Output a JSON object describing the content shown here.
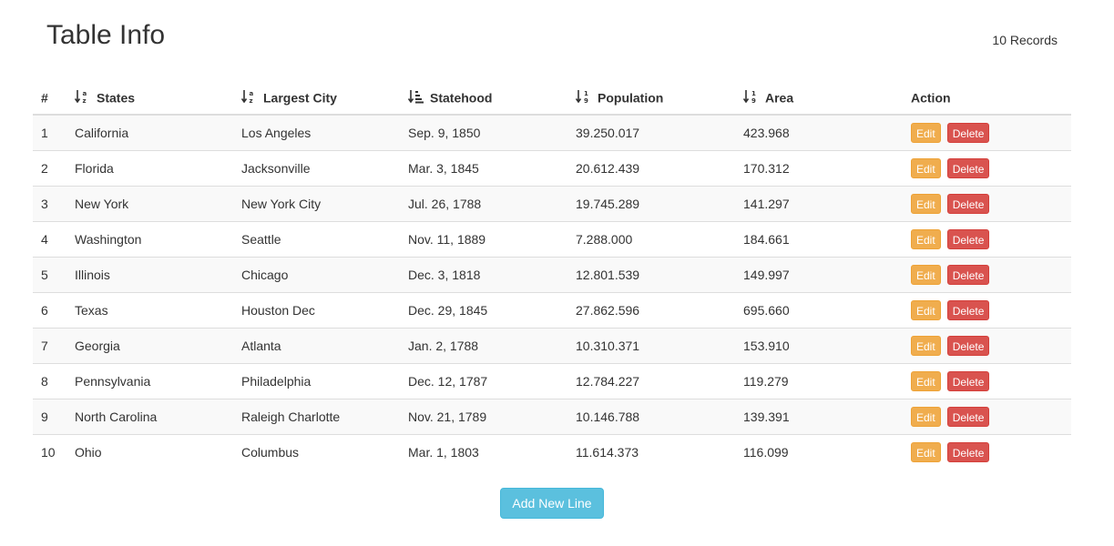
{
  "header": {
    "title": "Table Info",
    "record_count": "10 Records"
  },
  "table": {
    "columns": [
      {
        "label": "#",
        "sort_icon": null
      },
      {
        "label": "States",
        "sort_icon": "sort-alpha-down-icon"
      },
      {
        "label": "Largest City",
        "sort_icon": "sort-alpha-down-icon"
      },
      {
        "label": "Statehood",
        "sort_icon": "sort-amount-down-icon"
      },
      {
        "label": "Population",
        "sort_icon": "sort-numeric-down-icon"
      },
      {
        "label": "Area",
        "sort_icon": "sort-numeric-down-icon"
      },
      {
        "label": "Action",
        "sort_icon": null
      }
    ],
    "rows": [
      {
        "num": "1",
        "state": "California",
        "city": "Los Angeles",
        "statehood": "Sep. 9, 1850",
        "population": "39.250.017",
        "area": "423.968"
      },
      {
        "num": "2",
        "state": "Florida",
        "city": "Jacksonville",
        "statehood": "Mar. 3, 1845",
        "population": "20.612.439",
        "area": "170.312"
      },
      {
        "num": "3",
        "state": "New York",
        "city": "New York City",
        "statehood": "Jul. 26, 1788",
        "population": "19.745.289",
        "area": "141.297"
      },
      {
        "num": "4",
        "state": "Washington",
        "city": "Seattle",
        "statehood": "Nov. 11, 1889",
        "population": "7.288.000",
        "area": "184.661"
      },
      {
        "num": "5",
        "state": "Illinois",
        "city": "Chicago",
        "statehood": "Dec. 3, 1818",
        "population": "12.801.539",
        "area": "149.997"
      },
      {
        "num": "6",
        "state": "Texas",
        "city": "Houston Dec",
        "statehood": "Dec. 29, 1845",
        "population": "27.862.596",
        "area": "695.660"
      },
      {
        "num": "7",
        "state": "Georgia",
        "city": "Atlanta",
        "statehood": "Jan. 2, 1788",
        "population": "10.310.371",
        "area": "153.910"
      },
      {
        "num": "8",
        "state": "Pennsylvania",
        "city": "Philadelphia",
        "statehood": "Dec. 12, 1787",
        "population": "12.784.227",
        "area": "119.279"
      },
      {
        "num": "9",
        "state": "North Carolina",
        "city": "Raleigh Charlotte",
        "statehood": "Nov. 21, 1789",
        "population": "10.146.788",
        "area": "139.391"
      },
      {
        "num": "10",
        "state": "Ohio",
        "city": "Columbus",
        "statehood": "Mar. 1, 1803",
        "population": "11.614.373",
        "area": "116.099"
      }
    ],
    "actions": {
      "edit_label": "Edit",
      "delete_label": "Delete"
    }
  },
  "footer": {
    "add_label": "Add New Line"
  },
  "colors": {
    "edit": "#f0ad4e",
    "delete": "#d9534f",
    "add": "#5bc0de",
    "stripe": "#f9f9f9",
    "border": "#dddddd"
  }
}
